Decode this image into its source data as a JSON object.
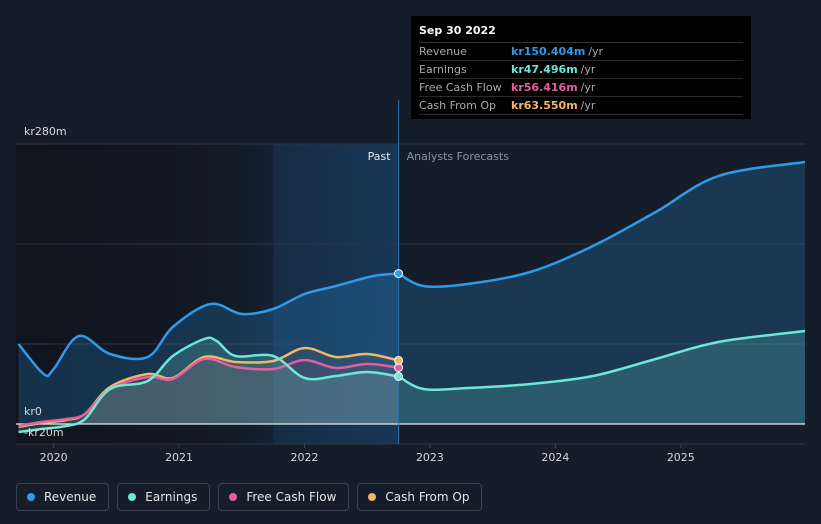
{
  "tooltip": {
    "date": "Sep 30 2022",
    "rows": [
      {
        "label": "Revenue",
        "value": "kr150.404m",
        "unit": "/yr",
        "color": "#2e9bea"
      },
      {
        "label": "Earnings",
        "value": "kr47.496m",
        "unit": "/yr",
        "color": "#6ee7d6"
      },
      {
        "label": "Free Cash Flow",
        "value": "kr56.416m",
        "unit": "/yr",
        "color": "#e35fa1"
      },
      {
        "label": "Cash From Op",
        "value": "kr63.550m",
        "unit": "/yr",
        "color": "#f3b667"
      }
    ]
  },
  "labels": {
    "past": "Past",
    "forecast": "Analysts Forecasts"
  },
  "chart_data": {
    "type": "line",
    "ylabel_top": "kr280m",
    "ylabel_zero": "kr0",
    "ylabel_bottom": "-kr20m",
    "ylim": [
      -20,
      280
    ],
    "xlim": [
      2019.7,
      2025.99
    ],
    "past_end": 2022.75,
    "x_ticks": [
      "2020",
      "2021",
      "2022",
      "2023",
      "2024",
      "2025"
    ],
    "series": [
      {
        "name": "Revenue",
        "color": "#2e9bea",
        "points": [
          [
            2019.72,
            80
          ],
          [
            2019.92,
            50
          ],
          [
            2020.0,
            55
          ],
          [
            2020.2,
            88
          ],
          [
            2020.45,
            70
          ],
          [
            2020.75,
            67
          ],
          [
            2020.95,
            97
          ],
          [
            2021.25,
            120
          ],
          [
            2021.5,
            110
          ],
          [
            2021.75,
            115
          ],
          [
            2022.0,
            130
          ],
          [
            2022.25,
            138
          ],
          [
            2022.55,
            148
          ],
          [
            2022.75,
            150.4
          ]
        ],
        "forecast": [
          [
            2022.75,
            150.4
          ],
          [
            2022.95,
            138
          ],
          [
            2023.3,
            140
          ],
          [
            2023.8,
            152
          ],
          [
            2024.3,
            178
          ],
          [
            2024.8,
            212
          ],
          [
            2025.3,
            248
          ],
          [
            2025.99,
            262
          ]
        ]
      },
      {
        "name": "Earnings",
        "color": "#6ee7d6",
        "points": [
          [
            2019.72,
            -8
          ],
          [
            2019.9,
            -5
          ],
          [
            2020.1,
            -2
          ],
          [
            2020.25,
            5
          ],
          [
            2020.45,
            35
          ],
          [
            2020.75,
            43
          ],
          [
            2020.95,
            68
          ],
          [
            2021.2,
            85
          ],
          [
            2021.3,
            83
          ],
          [
            2021.45,
            68
          ],
          [
            2021.75,
            68
          ],
          [
            2022.0,
            46
          ],
          [
            2022.25,
            48
          ],
          [
            2022.5,
            52
          ],
          [
            2022.75,
            47.5
          ]
        ],
        "forecast": [
          [
            2022.75,
            47.5
          ],
          [
            2022.95,
            35
          ],
          [
            2023.3,
            36
          ],
          [
            2023.8,
            40
          ],
          [
            2024.3,
            48
          ],
          [
            2024.8,
            65
          ],
          [
            2025.3,
            82
          ],
          [
            2025.99,
            93
          ]
        ]
      },
      {
        "name": "Free Cash Flow",
        "color": "#e35fa1",
        "points": [
          [
            2019.72,
            -2
          ],
          [
            2019.9,
            2
          ],
          [
            2020.1,
            5
          ],
          [
            2020.25,
            10
          ],
          [
            2020.45,
            35
          ],
          [
            2020.75,
            47
          ],
          [
            2020.95,
            45
          ],
          [
            2021.2,
            65
          ],
          [
            2021.45,
            57
          ],
          [
            2021.75,
            55
          ],
          [
            2022.0,
            64
          ],
          [
            2022.25,
            56
          ],
          [
            2022.5,
            60
          ],
          [
            2022.75,
            56.4
          ]
        ]
      },
      {
        "name": "Cash From Op",
        "color": "#f3b667",
        "points": [
          [
            2019.72,
            -3
          ],
          [
            2019.9,
            1
          ],
          [
            2020.1,
            4
          ],
          [
            2020.25,
            10
          ],
          [
            2020.45,
            37
          ],
          [
            2020.75,
            50
          ],
          [
            2020.95,
            46
          ],
          [
            2021.2,
            67
          ],
          [
            2021.45,
            62
          ],
          [
            2021.75,
            63
          ],
          [
            2022.0,
            76
          ],
          [
            2022.25,
            67
          ],
          [
            2022.5,
            70
          ],
          [
            2022.75,
            63.6
          ]
        ]
      }
    ]
  },
  "legend": [
    "Revenue",
    "Earnings",
    "Free Cash Flow",
    "Cash From Op"
  ]
}
